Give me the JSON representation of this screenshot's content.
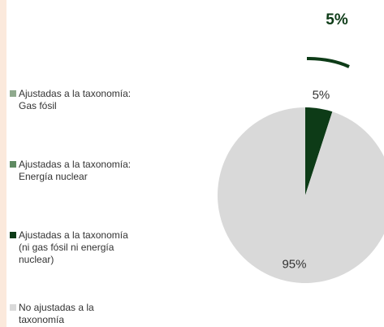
{
  "chart_data": {
    "type": "pie",
    "annotation": "5%",
    "series": [
      {
        "name": "Ajustadas a la taxonomía:\nGas fósil",
        "color": "#8fa98d",
        "values": [
          0
        ]
      },
      {
        "name": "Ajustadas a la taxonomía:\nEnergía nuclear",
        "color": "#5f8a62",
        "values": [
          0
        ]
      },
      {
        "name": "Ajustadas a la taxonomía\n(ni gas fósil ni energía\nnuclear)",
        "color": "#0d3b17",
        "values": [
          5
        ],
        "value_labels": [
          "5%"
        ]
      },
      {
        "name": "No ajustadas a la\ntaxonomía",
        "color": "#d9d9d9",
        "values": [
          95
        ],
        "value_labels": [
          "95%"
        ]
      }
    ]
  }
}
